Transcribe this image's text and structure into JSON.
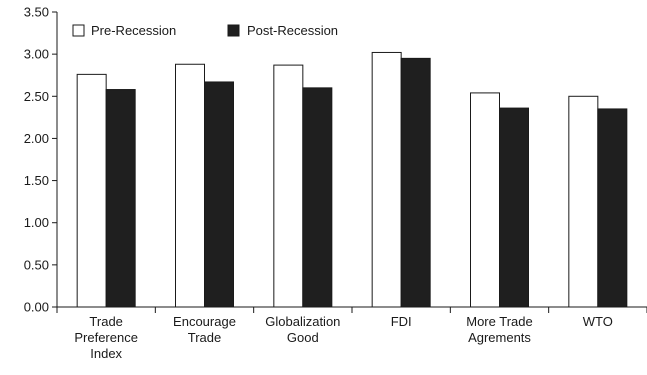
{
  "chart_data": {
    "type": "bar",
    "title": "",
    "xlabel": "",
    "ylabel": "",
    "ylim": [
      0,
      3.5
    ],
    "yticks": [
      "0.00",
      "0.50",
      "1.00",
      "1.50",
      "2.00",
      "2.50",
      "3.00",
      "3.50"
    ],
    "grid": false,
    "legend_position": "top-left",
    "categories": [
      [
        "Trade",
        "Preference",
        "Index"
      ],
      [
        "Encourage",
        "Trade"
      ],
      [
        "Globalization",
        "Good"
      ],
      [
        "FDI"
      ],
      [
        "More Trade",
        "Agrements"
      ],
      [
        "WTO"
      ]
    ],
    "series": [
      {
        "name": "Pre-Recession",
        "color": "#ffffff",
        "values": [
          2.76,
          2.88,
          2.87,
          3.02,
          2.54,
          2.5
        ]
      },
      {
        "name": "Post-Recession",
        "color": "#1f1f1f",
        "values": [
          2.58,
          2.67,
          2.6,
          2.95,
          2.36,
          2.35
        ]
      }
    ]
  }
}
